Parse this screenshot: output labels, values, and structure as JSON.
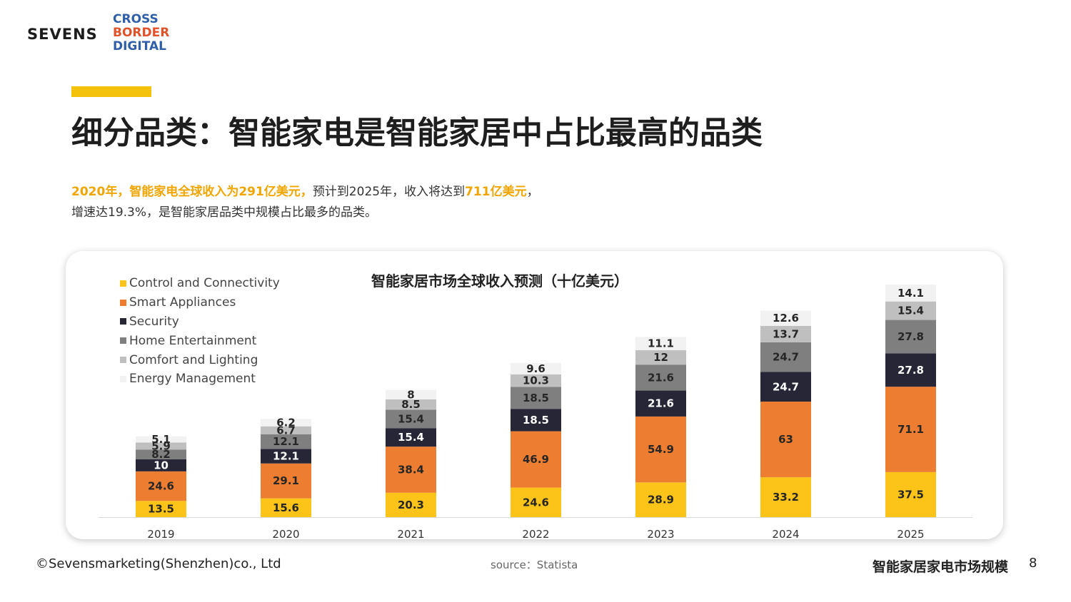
{
  "brand": {
    "sevens": "SEVENS",
    "cross": "CROSS",
    "border": "BORDER",
    "digital": "DIGITAL"
  },
  "title": "细分品类：智能家电是智能家居中占比最高的品类",
  "summary": {
    "hl1": "2020年，智能家电全球收入为291亿美元，",
    "t1": "预计到2025年，收入将达到",
    "hl2": "711亿美元",
    "t2": "，",
    "line2": "增速达19.3%，是智能家居品类中规模占比最多的品类。"
  },
  "footer": {
    "copyright": "©Sevensmarketing(Shenzhen)co., Ltd",
    "source": "source：Statista",
    "section": "智能家居家电市场规模",
    "page": "8"
  },
  "colors": {
    "accent": "#f4c20d",
    "highlight": "#f0a500"
  },
  "chart_data": {
    "type": "bar",
    "stacked": true,
    "title": "智能家居市场全球收入预测（十亿美元）",
    "categories": [
      "2019",
      "2020",
      "2021",
      "2022",
      "2023",
      "2024",
      "2025"
    ],
    "series": [
      {
        "name": "Control and Connectivity",
        "color": "#fcc419",
        "values": [
          13.5,
          15.6,
          20.3,
          24.6,
          28.9,
          33.2,
          37.5
        ]
      },
      {
        "name": "Smart Appliances",
        "color": "#ed7d31",
        "values": [
          24.6,
          29.1,
          38.4,
          46.9,
          54.9,
          63,
          71.1
        ]
      },
      {
        "name": "Security",
        "color": "#262636",
        "values": [
          10,
          12.1,
          15.4,
          18.5,
          21.6,
          24.7,
          27.8
        ]
      },
      {
        "name": "Home Entertainment",
        "color": "#7f7f7f",
        "values": [
          8.2,
          12.1,
          15.4,
          18.5,
          21.6,
          24.7,
          27.8
        ]
      },
      {
        "name": "Comfort and Lighting",
        "color": "#bfbfbf",
        "values": [
          5.9,
          6.7,
          8.5,
          10.3,
          12,
          13.7,
          15.4
        ]
      },
      {
        "name": "Energy Management",
        "color": "#f2f2f2",
        "values": [
          5.1,
          6.2,
          8,
          9.6,
          11.1,
          12.6,
          14.1
        ]
      }
    ],
    "legend": "top-left",
    "grid": false
  }
}
